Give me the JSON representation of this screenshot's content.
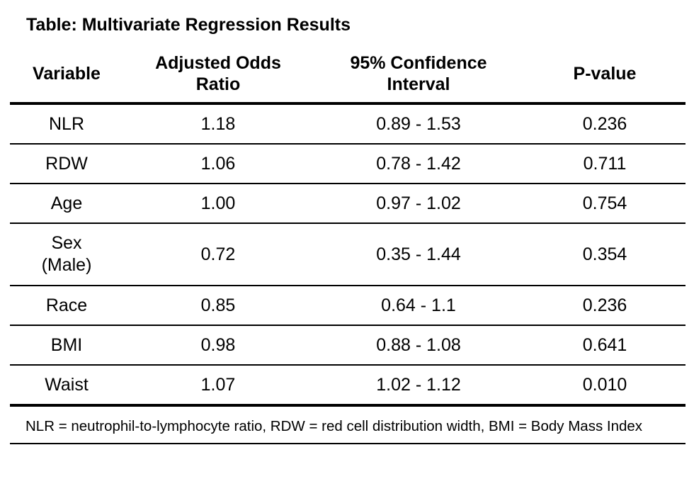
{
  "title": "Table: Multivariate Regression Results",
  "columns": [
    "Variable",
    "Adjusted Odds Ratio",
    "95% Confidence Interval",
    "P-value"
  ],
  "header_lines": [
    [
      "Variable"
    ],
    [
      "Adjusted Odds",
      "Ratio"
    ],
    [
      "95% Confidence",
      "Interval"
    ],
    [
      "P-value"
    ]
  ],
  "rows": [
    {
      "variable": [
        "NLR"
      ],
      "odds_ratio": "1.18",
      "ci": "0.89 - 1.53",
      "p_value": "0.236"
    },
    {
      "variable": [
        "RDW"
      ],
      "odds_ratio": "1.06",
      "ci": "0.78 - 1.42",
      "p_value": "0.711"
    },
    {
      "variable": [
        "Age"
      ],
      "odds_ratio": "1.00",
      "ci": "0.97 - 1.02",
      "p_value": "0.754"
    },
    {
      "variable": [
        "Sex",
        "(Male)"
      ],
      "odds_ratio": "0.72",
      "ci": "0.35 - 1.44",
      "p_value": "0.354"
    },
    {
      "variable": [
        "Race"
      ],
      "odds_ratio": "0.85",
      "ci": "0.64 - 1.1",
      "p_value": "0.236"
    },
    {
      "variable": [
        "BMI"
      ],
      "odds_ratio": "0.98",
      "ci": "0.88 - 1.08",
      "p_value": "0.641"
    },
    {
      "variable": [
        "Waist"
      ],
      "odds_ratio": "1.07",
      "ci": "1.02 - 1.12",
      "p_value": "0.010"
    }
  ],
  "footnote": "NLR = neutrophil-to-lymphocyte ratio, RDW = red cell distribution width, BMI = Body Mass Index"
}
